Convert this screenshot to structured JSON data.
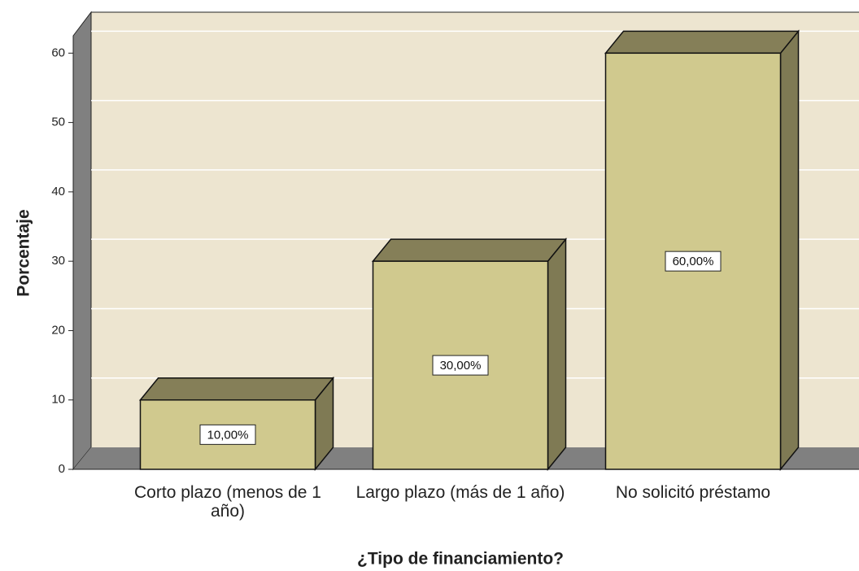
{
  "chart_data": {
    "type": "bar3d",
    "categories": [
      "Corto plazo (menos de 1 año)",
      "Largo plazo (más de 1 año)",
      "No solicitó préstamo"
    ],
    "values": [
      10,
      30,
      60
    ],
    "value_labels": [
      "10,00%",
      "30,00%",
      "60,00%"
    ],
    "color": "#d0c98e",
    "x_label": "¿Tipo de financiamiento?",
    "y_label": "Porcentaje",
    "ylim": [
      0,
      62.5
    ],
    "yticks": [
      0,
      10,
      20,
      30,
      40,
      50,
      60
    ],
    "grid": true
  }
}
